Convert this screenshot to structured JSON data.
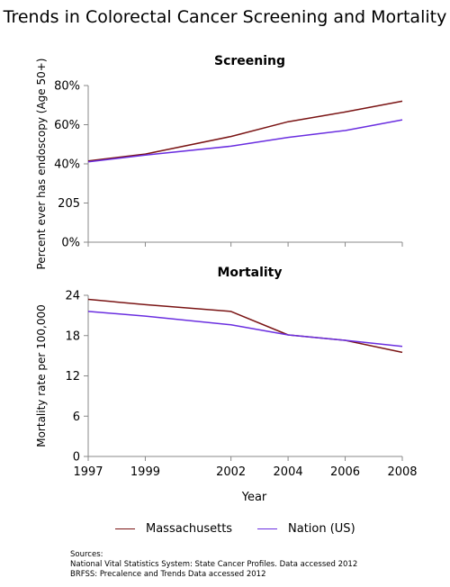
{
  "title": "Trends in Colorectal Cancer Screening and Mortality",
  "colors": {
    "massachusetts": "#7a1414",
    "nation": "#6a2ee0",
    "axis": "#888888"
  },
  "legend": {
    "items": [
      "Massachusetts",
      "Nation (US)"
    ]
  },
  "sources": {
    "heading": "Sources:",
    "lines": [
      "National Vital Statistics System: State Cancer Profiles. Data accessed 2012",
      "BRFSS: Precalence and Trends Data accessed 2012"
    ]
  },
  "chart_data": [
    {
      "type": "line",
      "title": "Screening",
      "ylabel": "Percent ever has endoscopy  (Age 50+)",
      "xlabel": "",
      "ylim": [
        0,
        80
      ],
      "ytick_labels": [
        "0%",
        "205",
        "40%",
        "60%",
        "80%"
      ],
      "x": [
        1997,
        1999,
        2002,
        2004,
        2006,
        2008
      ],
      "series": [
        {
          "name": "Massachusetts",
          "values": [
            41.5,
            45,
            54,
            61.5,
            66.5,
            72
          ]
        },
        {
          "name": "Nation (US)",
          "values": [
            41,
            44.5,
            49,
            53.5,
            57,
            62.5
          ]
        }
      ],
      "grid": false
    },
    {
      "type": "line",
      "title": "Mortality",
      "ylabel": "Mortality rate per 100,000",
      "xlabel": "Year",
      "ylim": [
        0,
        24
      ],
      "ytick_labels": [
        "0",
        "6",
        "12",
        "18",
        "24"
      ],
      "x": [
        1997,
        1999,
        2002,
        2004,
        2006,
        2008
      ],
      "xtick_labels": [
        "1997",
        "1999",
        "2002",
        "2004",
        "2006",
        "2008"
      ],
      "series": [
        {
          "name": "Massachusetts",
          "values": [
            23.4,
            22.6,
            21.6,
            18.1,
            17.3,
            15.5
          ]
        },
        {
          "name": "Nation (US)",
          "values": [
            21.6,
            20.9,
            19.6,
            18.1,
            17.3,
            16.4
          ]
        }
      ],
      "grid": false
    }
  ]
}
